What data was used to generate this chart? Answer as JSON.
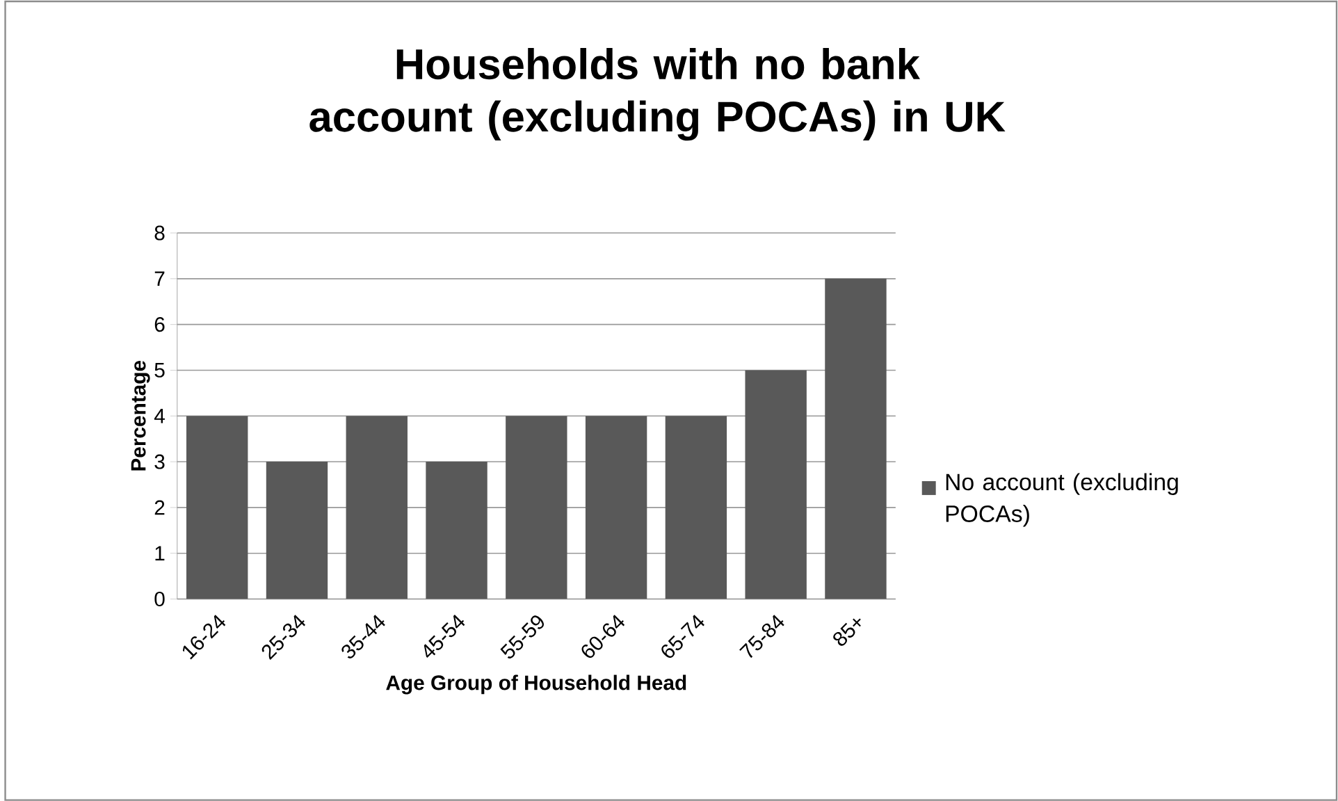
{
  "chart_data": {
    "type": "bar",
    "title": "Households with no bank account (excluding POCAs) in UK",
    "xlabel": "Age Group of Household Head",
    "ylabel": "Percentage",
    "categories": [
      "16-24",
      "25-34",
      "35-44",
      "45-54",
      "55-59",
      "60-64",
      "65-74",
      "75-84",
      "85+"
    ],
    "series": [
      {
        "name": "No account (excluding POCAs)",
        "color": "#595959",
        "values": [
          4,
          3,
          4,
          3,
          4,
          4,
          4,
          5,
          7
        ]
      }
    ],
    "ylim": [
      0,
      8
    ],
    "yticks": [
      0,
      1,
      2,
      3,
      4,
      5,
      6,
      7,
      8
    ],
    "grid": "y",
    "legend": "right"
  }
}
